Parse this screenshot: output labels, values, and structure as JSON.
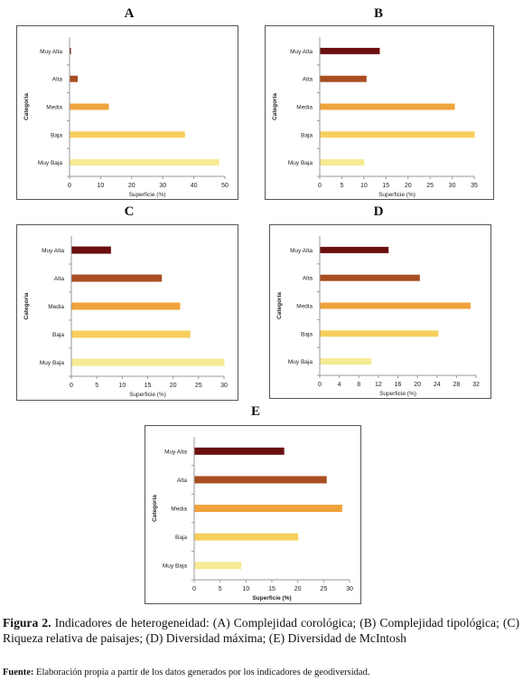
{
  "figure": {
    "caption_label": "Figura 2.",
    "caption_text": " Indicadores de heterogeneidad: (A) Complejidad corológica; (B) Complejidad tipológica; (C) Riqueza relativa de paisajes; (D) Diversidad máxima; (E) Diversidad de McIntosh",
    "source_label": "Fuente:",
    "source_text": " Elaboración propia a partir de los datos generados por los indicadores de geodiversidad."
  },
  "colors": {
    "Muy Alta": "#6b0f0f",
    "Alta": "#a84e22",
    "Media": "#f0a33c",
    "Baja": "#f7cf5c",
    "Muy Baja": "#f6ea94"
  },
  "chart_data": [
    {
      "id": "A",
      "type": "bar",
      "orientation": "horizontal",
      "panel_label": "A",
      "categories": [
        "Muy Baja",
        "Baja",
        "Media",
        "Alta",
        "Muy Alta"
      ],
      "values": [
        48,
        37,
        12.5,
        2.5,
        0.3
      ],
      "xlabel": "Superficie (%)",
      "ylabel": "Categoría",
      "xlim": [
        0,
        50
      ],
      "xticks": [
        "0",
        "10",
        "20",
        "30",
        "40",
        "50"
      ],
      "grid": false,
      "legend": "none"
    },
    {
      "id": "B",
      "type": "bar",
      "orientation": "horizontal",
      "panel_label": "B",
      "categories": [
        "Muy Baja",
        "Baja",
        "Media",
        "Alta",
        "Muy Alta"
      ],
      "values": [
        10,
        35,
        30.5,
        10.5,
        13.5
      ],
      "xlabel": "Superficie (%)",
      "ylabel": "Categoría",
      "xlim": [
        0,
        35
      ],
      "xticks": [
        "0",
        "5",
        "10",
        "15",
        "20",
        "25",
        "30",
        "35"
      ],
      "grid": false,
      "legend": "none"
    },
    {
      "id": "C",
      "type": "bar",
      "orientation": "horizontal",
      "panel_label": "C",
      "categories": [
        "Muy Baja",
        "Baja",
        "Media",
        "Alta",
        "Muy Alta"
      ],
      "values": [
        30,
        23.3,
        21.3,
        17.7,
        7.7
      ],
      "xlabel": "Superficie (%)",
      "ylabel": "Categoría",
      "xlim": [
        0,
        30
      ],
      "xticks": [
        "0",
        "5",
        "10",
        "15",
        "20",
        "25",
        "30"
      ],
      "grid": false,
      "legend": "none"
    },
    {
      "id": "D",
      "type": "bar",
      "orientation": "horizontal",
      "panel_label": "D",
      "categories": [
        "Muy Baja",
        "Baja",
        "Media",
        "Alta",
        "Muy Alta"
      ],
      "values": [
        10.5,
        24.2,
        30.8,
        20.4,
        14
      ],
      "xlabel": "Superficie (%)",
      "ylabel": "Categoría",
      "xlim": [
        0,
        32
      ],
      "xticks": [
        "0",
        "4",
        "8",
        "12",
        "16",
        "20",
        "24",
        "28",
        "32"
      ],
      "grid": false,
      "legend": "none"
    },
    {
      "id": "E",
      "type": "bar",
      "orientation": "horizontal",
      "panel_label": "E",
      "categories": [
        "Muy Baja",
        "Baja",
        "Media",
        "Alta",
        "Muy Alta"
      ],
      "values": [
        9,
        20,
        28.5,
        25.5,
        17.3
      ],
      "xlabel": "Superficie (%)",
      "ylabel": "Categoría",
      "xlim": [
        0,
        30
      ],
      "xticks": [
        "0",
        "5",
        "10",
        "15",
        "20",
        "25",
        "30"
      ],
      "grid": false,
      "legend": "none"
    }
  ]
}
